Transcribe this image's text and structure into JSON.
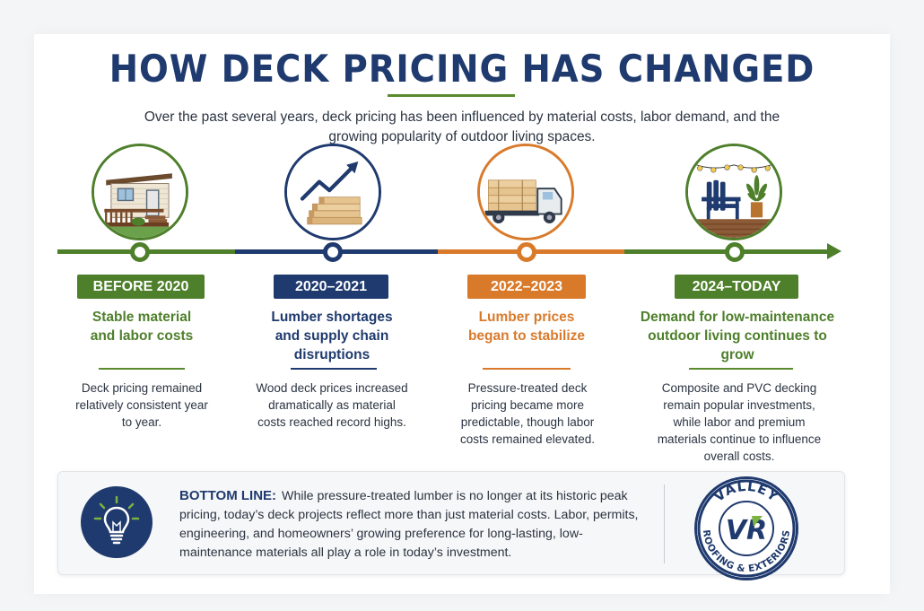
{
  "title": "HOW DECK PRICING HAS CHANGED",
  "subtitle": "Over the past several years, deck pricing has been influenced by material costs, labor demand, and the growing popularity of outdoor living spaces.",
  "colors": {
    "green": "#4e7f2b",
    "navy": "#1f3a6e",
    "orange": "#d97a2b",
    "heading_green": "#4e7f2b",
    "heading_navy": "#1f3a6e",
    "heading_orange": "#d97a2b"
  },
  "timeline": [
    {
      "badge": "BEFORE 2020",
      "heading": "Stable material and labor costs",
      "body": "Deck pricing remained relatively consistent year to year.",
      "icon": "house-deck-icon"
    },
    {
      "badge": "2020–2021",
      "heading": "Lumber shortages and supply chain disruptions",
      "body": "Wood deck prices increased dramatically as material costs reached record highs.",
      "icon": "rising-price-lumber-icon"
    },
    {
      "badge": "2022–2023",
      "heading": "Lumber prices began to stabilize",
      "body": "Pressure-treated deck pricing became more predictable, though labor costs remained elevated.",
      "icon": "lumber-truck-icon"
    },
    {
      "badge": "2024–TODAY",
      "heading": "Demand for low-maintenance outdoor living continues to grow",
      "body": "Composite and PVC decking remain popular investments, while labor and premium materials continue to influence overall costs.",
      "icon": "patio-chair-icon"
    }
  ],
  "bottom_line": {
    "label": "BOTTOM LINE:",
    "text": "While pressure-treated lumber is no longer at its historic peak pricing, today’s deck projects reflect more than just material costs. Labor, permits, engineering, and homeowners’ growing preference for long-lasting, low-maintenance materials all play a role in today’s investment.",
    "icon": "lightbulb-icon"
  },
  "logo": {
    "top_text": "VALLEY",
    "monogram": "VR",
    "bottom_text": "ROOFING & EXTERIORS"
  }
}
